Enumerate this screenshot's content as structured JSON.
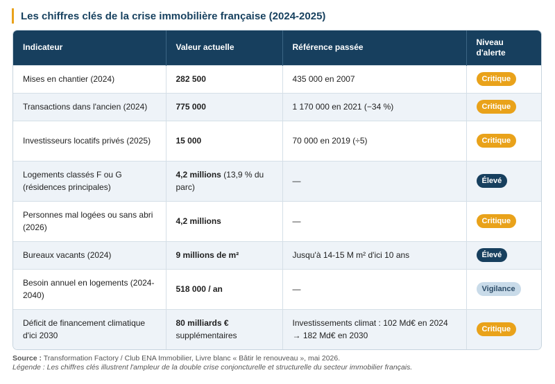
{
  "title": "Les chiffres clés de la crise immobilière française (2024-2025)",
  "headers": {
    "indicator": "Indicateur",
    "current": "Valeur actuelle",
    "reference": "Référence passée",
    "alert_line1": "Niveau",
    "alert_line2": "d'alerte"
  },
  "rows": [
    {
      "indicator": "Mises en chantier (2024)",
      "value_bold": "282 500",
      "value_rest": "",
      "reference": "435 000 en 2007",
      "alert": "Critique",
      "alert_level": "critique"
    },
    {
      "indicator": "Transactions dans l'ancien (2024)",
      "value_bold": "775 000",
      "value_rest": "",
      "reference": "1 170 000 en 2021 (−34 %)",
      "alert": "Critique",
      "alert_level": "critique"
    },
    {
      "indicator": "Investisseurs locatifs privés (2025)",
      "value_bold": "15 000",
      "value_rest": "",
      "reference": "70 000 en 2019 (÷5)",
      "alert": "Critique",
      "alert_level": "critique"
    },
    {
      "indicator": "Logements classés F ou G (résidences principales)",
      "value_bold": "4,2 millions",
      "value_rest": " (13,9 % du parc)",
      "reference": "—",
      "alert": "Élevé",
      "alert_level": "eleve"
    },
    {
      "indicator": "Personnes mal logées ou sans abri (2026)",
      "value_bold": "4,2 millions",
      "value_rest": "",
      "reference": "—",
      "alert": "Critique",
      "alert_level": "critique"
    },
    {
      "indicator": "Bureaux vacants (2024)",
      "value_bold": "9 millions de m²",
      "value_rest": "",
      "reference": "Jusqu'à 14-15 M m² d'ici 10 ans",
      "alert": "Élevé",
      "alert_level": "eleve"
    },
    {
      "indicator": "Besoin annuel en logements (2024-2040)",
      "value_bold": "518 000 / an",
      "value_rest": "",
      "reference": "—",
      "alert": "Vigilance",
      "alert_level": "vigilance"
    },
    {
      "indicator": "Déficit de financement climatique d'ici 2030",
      "value_bold": "80 milliards €",
      "value_rest": " supplémentaires",
      "reference": "Investissements climat : 102 Md€ en 2024 → 182 Md€ en 2030",
      "alert": "Critique",
      "alert_level": "critique"
    }
  ],
  "footer": {
    "source_label": "Source :",
    "source_text": " Transformation Factory / Club ENA Immobilier, Livre blanc « Bâtir le renouveau », mai 2026.",
    "legend_text": "Légende : Les chiffres clés illustrent l'ampleur de la double crise conjoncturelle et structurelle du secteur immobilier français."
  },
  "colors": {
    "header_bg": "#173f5e",
    "accent": "#e9a21a",
    "vigilance_bg": "#c9dbe9"
  }
}
